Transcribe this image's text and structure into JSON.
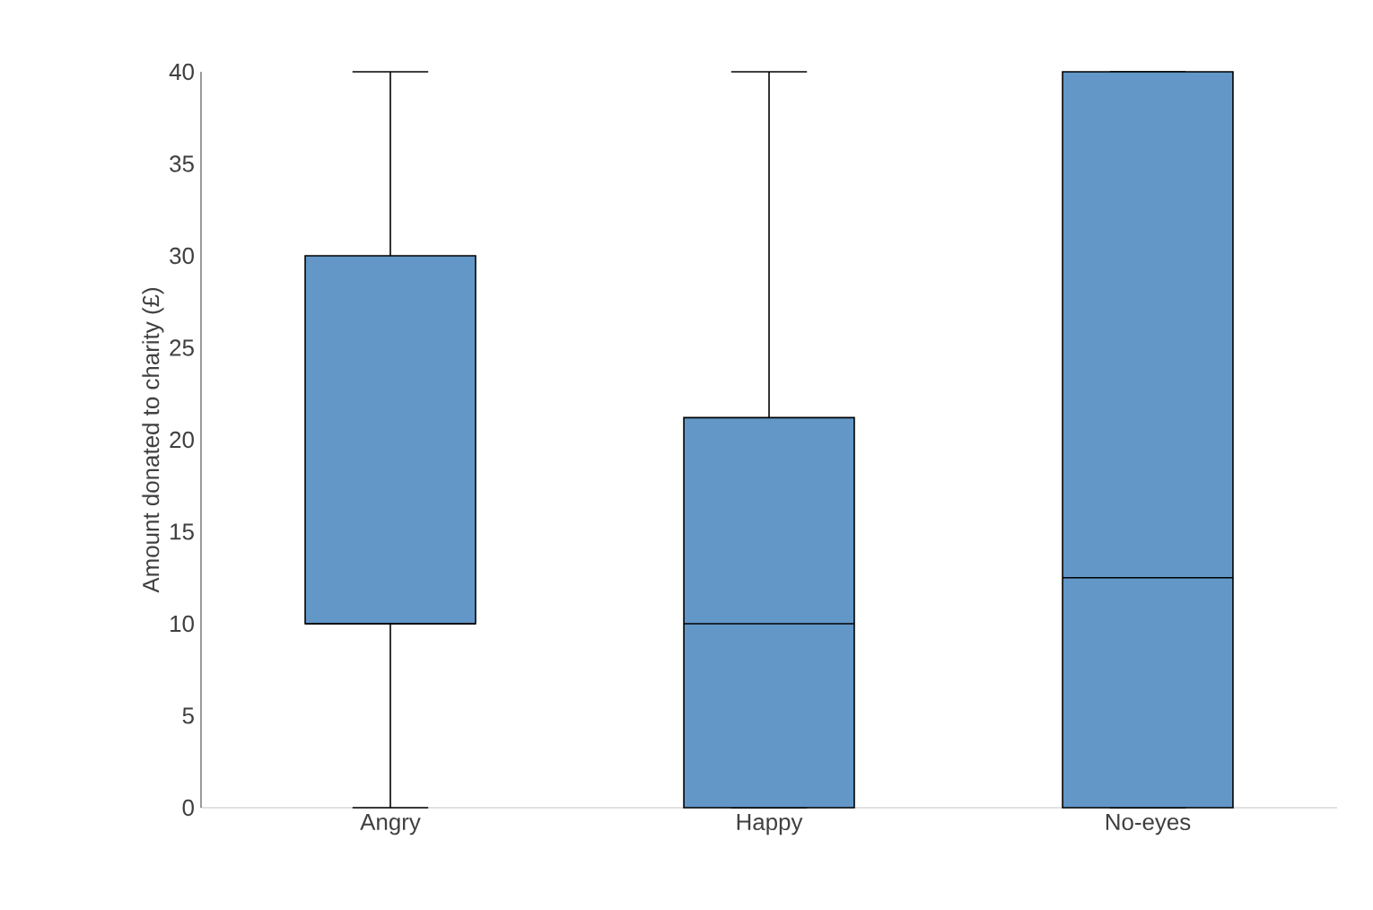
{
  "chart_data": {
    "type": "box",
    "ylabel": "Amount donated to charity (£)",
    "categories": [
      "Angry",
      "Happy",
      "No-eyes"
    ],
    "boxes": [
      {
        "low": 0,
        "q1": 10,
        "median": 10,
        "q3": 30,
        "high": 40
      },
      {
        "low": 0,
        "q1": 0,
        "median": 10,
        "q3": 21.2,
        "high": 40
      },
      {
        "low": 0,
        "q1": 0,
        "median": 12.5,
        "q3": 40,
        "high": 40
      }
    ],
    "color": "#6297c8",
    "ylim": [
      0,
      40
    ],
    "yticks": [
      0,
      5,
      10,
      15,
      20,
      25,
      30,
      35,
      40
    ],
    "grid": false
  }
}
